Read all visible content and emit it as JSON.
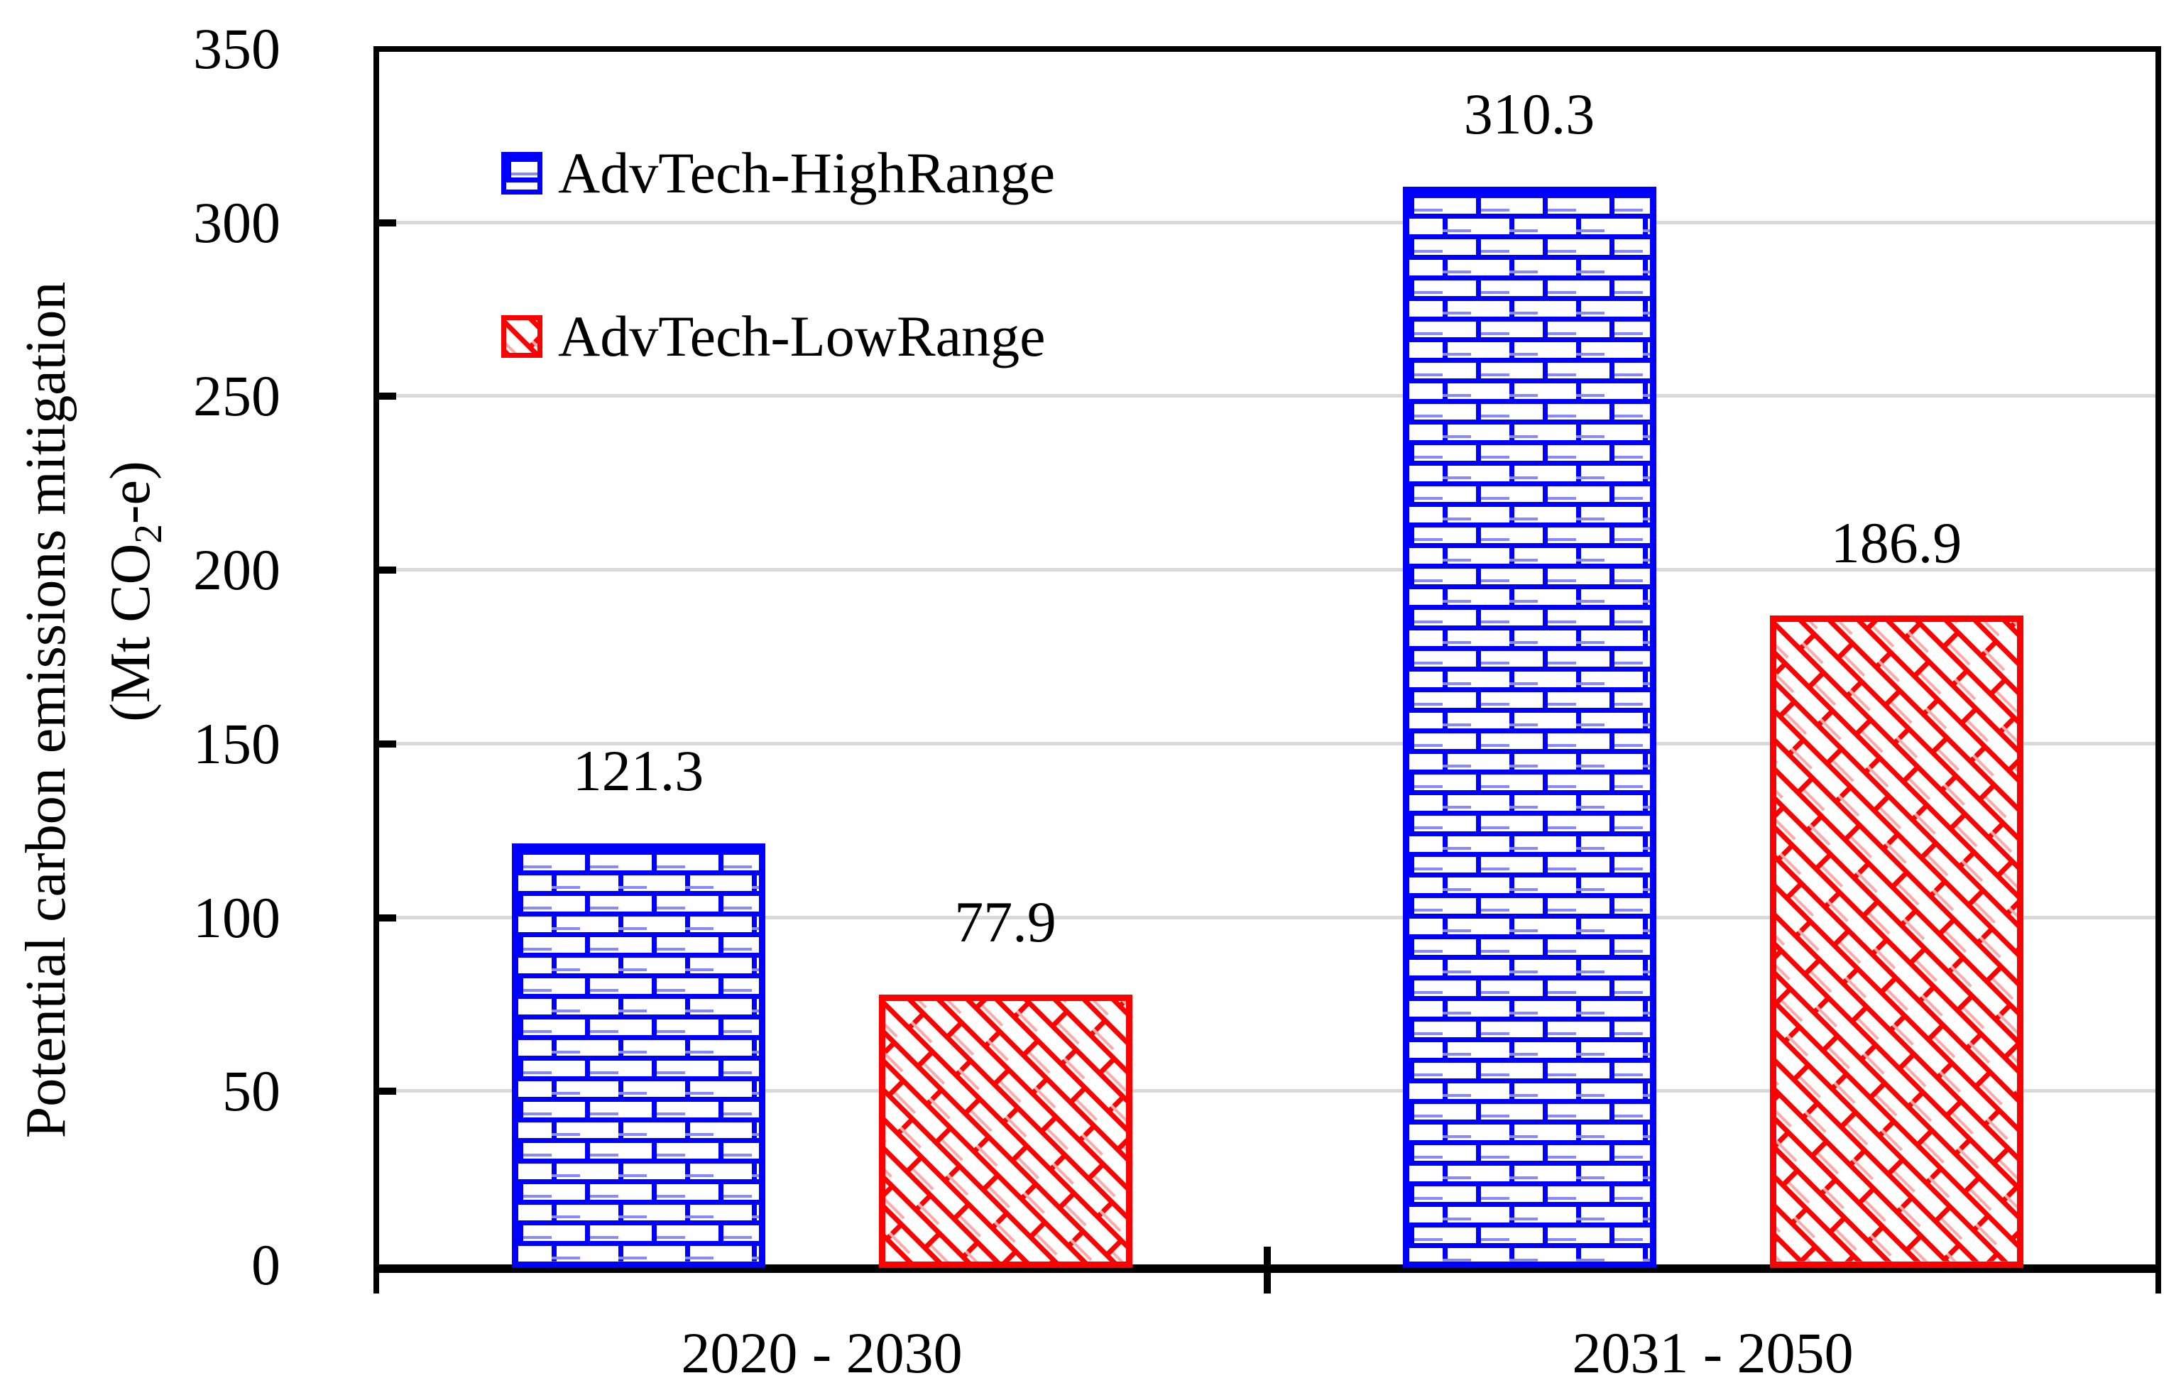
{
  "chart_data": {
    "type": "bar",
    "title": "",
    "categories": [
      "2020 - 2030",
      "2031 - 2050"
    ],
    "series": [
      {
        "name": "AdvTech-HighRange",
        "color": "#0000ff",
        "pattern": "horizontal-brick",
        "values": [
          121.3,
          310.3
        ]
      },
      {
        "name": "AdvTech-LowRange",
        "color": "#ff0000",
        "pattern": "diagonal-brick",
        "values": [
          77.9,
          186.9
        ]
      }
    ],
    "value_labels": [
      [
        "121.3",
        "310.3"
      ],
      [
        "77.9",
        "186.9"
      ]
    ],
    "ylabel": {
      "line1": "Potential carbon emissions mitigation",
      "line2_prefix": "(Mt CO",
      "line2_sub": "2",
      "line2_suffix": "-e)"
    },
    "ylim": [
      0,
      350
    ],
    "ytick_step": 50,
    "ytick_labels": [
      "0",
      "50",
      "100",
      "150",
      "200",
      "250",
      "300",
      "350"
    ],
    "grid": true,
    "legend_position": "top-left-inside",
    "colors": {
      "grid": "#d9d9d9",
      "axis": "#000000",
      "text": "#000000",
      "background": "#ffffff"
    }
  }
}
